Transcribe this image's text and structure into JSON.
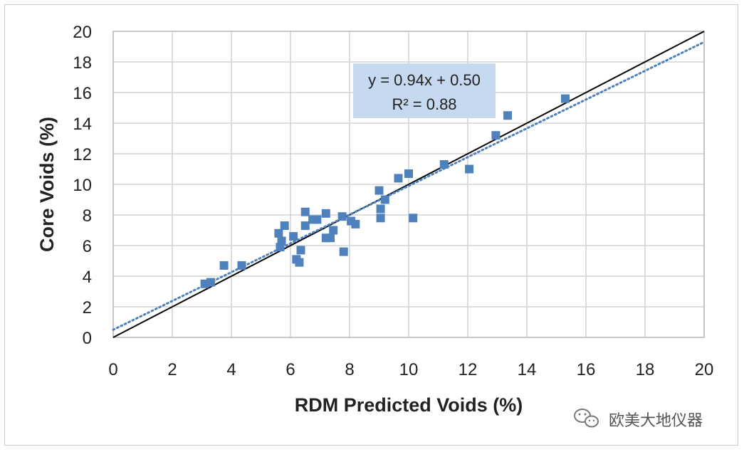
{
  "chart_data": {
    "type": "scatter",
    "xlabel": "RDM Predicted Voids (%)",
    "ylabel": "Core Voids (%)",
    "xlim": [
      0,
      20
    ],
    "ylim": [
      0,
      20
    ],
    "x_ticks": [
      "0",
      "2",
      "4",
      "6",
      "8",
      "10",
      "12",
      "14",
      "16",
      "18",
      "20"
    ],
    "y_ticks": [
      "0",
      "2",
      "4",
      "6",
      "8",
      "10",
      "12",
      "14",
      "16",
      "18",
      "20"
    ],
    "grid": true,
    "series": [
      {
        "name": "data",
        "color": "#4f81bd",
        "points": [
          [
            3.1,
            3.5
          ],
          [
            3.3,
            3.6
          ],
          [
            3.75,
            4.7
          ],
          [
            4.35,
            4.7
          ],
          [
            5.6,
            6.8
          ],
          [
            5.65,
            5.9
          ],
          [
            5.7,
            6.3
          ],
          [
            5.8,
            7.3
          ],
          [
            6.1,
            6.6
          ],
          [
            6.2,
            5.1
          ],
          [
            6.3,
            4.9
          ],
          [
            6.35,
            5.7
          ],
          [
            6.5,
            8.2
          ],
          [
            6.5,
            7.3
          ],
          [
            6.75,
            7.7
          ],
          [
            6.9,
            7.7
          ],
          [
            7.2,
            8.1
          ],
          [
            7.2,
            6.5
          ],
          [
            7.35,
            6.5
          ],
          [
            7.45,
            7.0
          ],
          [
            7.75,
            7.9
          ],
          [
            7.8,
            5.6
          ],
          [
            8.05,
            7.6
          ],
          [
            8.2,
            7.4
          ],
          [
            9.0,
            9.6
          ],
          [
            9.05,
            8.4
          ],
          [
            9.05,
            7.8
          ],
          [
            9.2,
            9.0
          ],
          [
            9.65,
            10.4
          ],
          [
            10.0,
            10.7
          ],
          [
            10.15,
            7.8
          ],
          [
            11.2,
            11.3
          ],
          [
            12.05,
            11.0
          ],
          [
            12.95,
            13.2
          ],
          [
            13.35,
            14.5
          ],
          [
            15.3,
            15.6
          ]
        ]
      }
    ],
    "identity_line": {
      "slope": 1,
      "intercept": 0,
      "color": "#000000"
    },
    "trendline": {
      "slope": 0.94,
      "intercept": 0.5,
      "color": "#4f81bd",
      "style": "dotted"
    },
    "annotation": {
      "line1": "y = 0.94x + 0.50",
      "line2": "R² = 0.88",
      "bg": "#c6d9f1"
    }
  },
  "watermark": {
    "text": "欧美大地仪器"
  }
}
